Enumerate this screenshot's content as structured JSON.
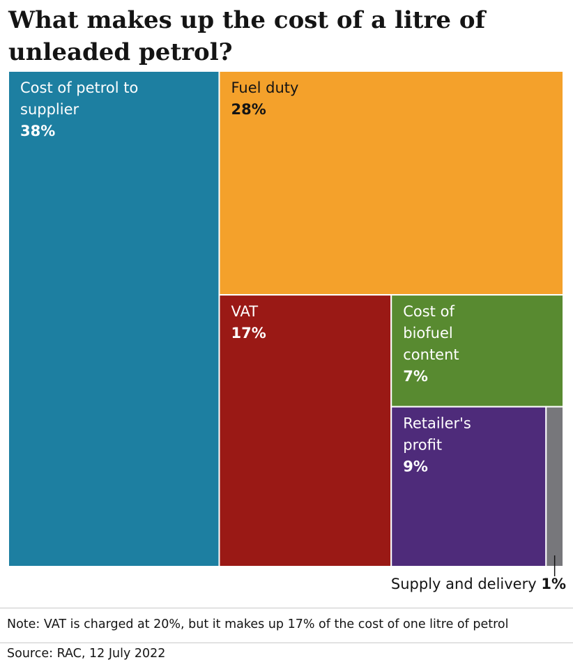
{
  "title": "What makes up the cost of a litre of unleaded petrol?",
  "chart_data": {
    "type": "treemap",
    "unit": "%",
    "items": [
      {
        "name": "Cost of petrol to supplier",
        "lines": [
          "Cost of petrol to",
          "supplier"
        ],
        "value": 38,
        "label": "38%",
        "color": "#1d7fa1",
        "text_color": "#ffffff"
      },
      {
        "name": "Fuel duty",
        "lines": [
          "Fuel duty"
        ],
        "value": 28,
        "label": "28%",
        "color": "#f4a12b",
        "text_color": "#141414"
      },
      {
        "name": "VAT",
        "lines": [
          "VAT"
        ],
        "value": 17,
        "label": "17%",
        "color": "#9a1915",
        "text_color": "#ffffff"
      },
      {
        "name": "Cost of biofuel content",
        "lines": [
          "Cost of",
          "biofuel",
          "content"
        ],
        "value": 7,
        "label": "7%",
        "color": "#588a30",
        "text_color": "#ffffff"
      },
      {
        "name": "Retailer's profit",
        "lines": [
          "Retailer's",
          "profit"
        ],
        "value": 9,
        "label": "9%",
        "color": "#4e2b7a",
        "text_color": "#ffffff"
      },
      {
        "name": "Supply and delivery",
        "lines": [],
        "value": 1,
        "label": "1%",
        "color": "#77777b",
        "text_color": "#141414"
      }
    ]
  },
  "callout": {
    "text": "Supply and delivery",
    "value": "1%"
  },
  "note": "Note: VAT is charged at 20%, but it makes up 17% of the cost of one litre of petrol",
  "source": "Source: RAC, 12 July 2022"
}
